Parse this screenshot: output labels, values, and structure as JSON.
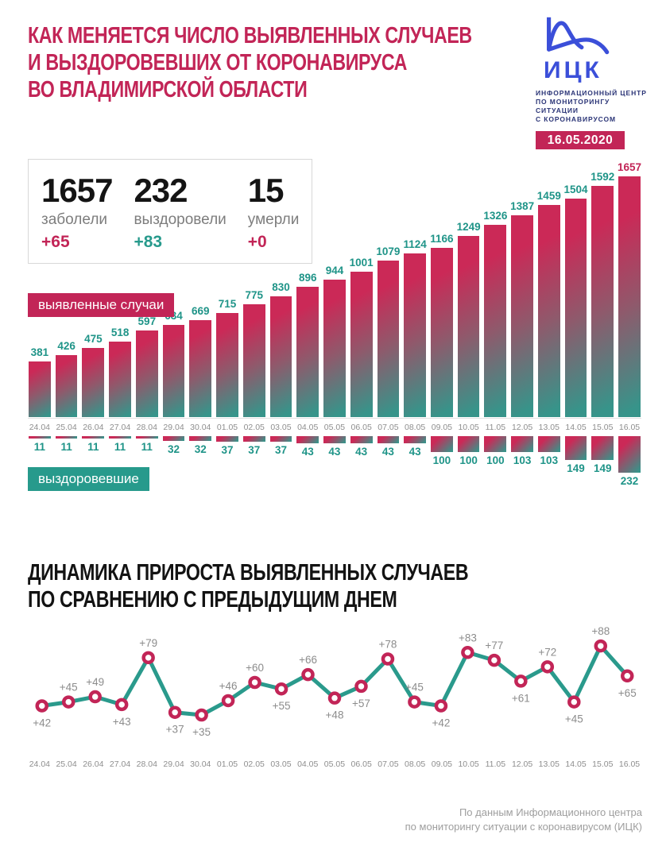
{
  "header": {
    "title_lines": [
      "КАК МЕНЯЕТСЯ ЧИСЛО ВЫЯВЛЕННЫХ СЛУЧАЕВ",
      "И ВЫЗДОРОВЕВШИХ ОТ КОРОНАВИРУСА",
      "ВО ВЛАДИМИРСКОЙ ОБЛАСТИ"
    ],
    "logo": {
      "abbr": "ИЦК",
      "subtitle_lines": [
        "ИНФОРМАЦИОННЫЙ ЦЕНТР",
        "ПО МОНИТОРИНГУ СИТУАЦИИ",
        "С КОРОНАВИРУСОМ"
      ],
      "date": "16.05.2020"
    }
  },
  "stats": {
    "items": [
      {
        "value": "1657",
        "label": "заболели",
        "delta": "+65",
        "delta_color": "#c22557"
      },
      {
        "value": "232",
        "label": "выздоровели",
        "delta": "+83",
        "delta_color": "#279a8c"
      },
      {
        "value": "15",
        "label": "умерли",
        "delta": "+0",
        "delta_color": "#c22557"
      }
    ]
  },
  "section2": {
    "title_lines": [
      "ДИНАМИКА ПРИРОСТА ВЫЯВЛЕННЫХ СЛУЧАЕВ",
      "ПО СРАВНЕНИЮ С ПРЕДЫДУЩИМ ДНЕМ"
    ]
  },
  "footer": {
    "lines": [
      "По данным Информационного центра",
      "по мониторингу ситуации с коронавирусом (ИЦК)"
    ]
  },
  "colors": {
    "crimson": "#c22557",
    "teal": "#279a8c",
    "bar_gradient_start": "#cb2957",
    "bar_gradient_end": "#37948a",
    "value_label_teal": "#1f9488",
    "gray_text": "#8e8e8e",
    "logo_blue": "#3b4fd9",
    "logo_navy": "#2b3577"
  },
  "chart_data": [
    {
      "type": "bar",
      "title": "выявленные случаи",
      "categories": [
        "24.04",
        "25.04",
        "26.04",
        "27.04",
        "28.04",
        "29.04",
        "30.04",
        "01.05",
        "02.05",
        "03.05",
        "04.05",
        "05.05",
        "06.05",
        "07.05",
        "08.05",
        "09.05",
        "10.05",
        "11.05",
        "12.05",
        "13.05",
        "14.05",
        "15.05",
        "16.05"
      ],
      "values": [
        381,
        426,
        475,
        518,
        597,
        634,
        669,
        715,
        775,
        830,
        896,
        944,
        1001,
        1079,
        1124,
        1166,
        1249,
        1326,
        1387,
        1459,
        1504,
        1592,
        1657
      ],
      "ylim": [
        0,
        1657
      ],
      "value_label_color": "#1f9488",
      "last_value_label_color": "#c22557",
      "legend_position": "left-overlay",
      "grid": false
    },
    {
      "type": "bar",
      "title": "выздоровевшие",
      "direction": "down",
      "categories": [
        "24.04",
        "25.04",
        "26.04",
        "27.04",
        "28.04",
        "29.04",
        "30.04",
        "01.05",
        "02.05",
        "03.05",
        "04.05",
        "05.05",
        "06.05",
        "07.05",
        "08.05",
        "09.05",
        "10.05",
        "11.05",
        "12.05",
        "13.05",
        "14.05",
        "15.05",
        "16.05"
      ],
      "values": [
        11,
        11,
        11,
        11,
        11,
        32,
        32,
        37,
        37,
        37,
        43,
        43,
        43,
        43,
        43,
        100,
        100,
        100,
        103,
        103,
        149,
        149,
        232
      ],
      "ylim": [
        0,
        232
      ],
      "value_label_color": "#1f9488",
      "grid": false
    },
    {
      "type": "line",
      "title": "Динамика прироста выявленных случаев по сравнению с предыдущим днем",
      "categories": [
        "24.04",
        "25.04",
        "26.04",
        "27.04",
        "28.04",
        "29.04",
        "30.04",
        "01.05",
        "02.05",
        "03.05",
        "04.05",
        "05.05",
        "06.05",
        "07.05",
        "08.05",
        "09.05",
        "10.05",
        "11.05",
        "12.05",
        "13.05",
        "14.05",
        "15.05",
        "16.05"
      ],
      "values": [
        42,
        45,
        49,
        43,
        79,
        37,
        35,
        46,
        60,
        55,
        66,
        48,
        57,
        78,
        45,
        42,
        83,
        77,
        61,
        72,
        45,
        88,
        65
      ],
      "label_prefix": "+",
      "label_pos": [
        "below",
        "above",
        "above",
        "below",
        "above",
        "below",
        "below",
        "above",
        "above",
        "below",
        "above",
        "below",
        "below",
        "above",
        "above",
        "below",
        "above",
        "above",
        "below",
        "above",
        "below",
        "above",
        "below"
      ],
      "ylim": [
        35,
        88
      ],
      "line_color": "#2a9a8c",
      "marker_color": "#c22557",
      "label_color": "#8c8c8c",
      "grid": false
    }
  ]
}
